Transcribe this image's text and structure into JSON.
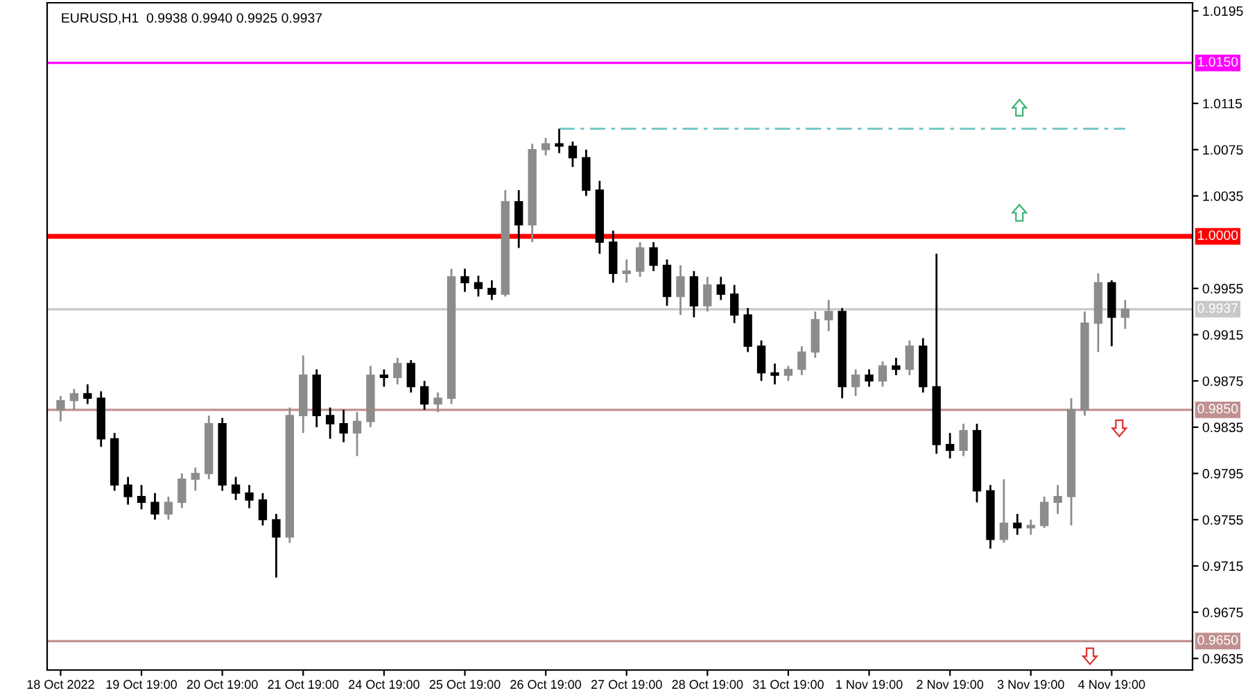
{
  "chart_data": {
    "type": "candlestick",
    "title": "EURUSD,H1  0.9938 0.9940 0.9925 0.9937",
    "categories": [
      "18 Oct 2022",
      null,
      null,
      null,
      null,
      null,
      "19 Oct 19:00",
      null,
      null,
      null,
      null,
      null,
      "20 Oct 19:00",
      null,
      null,
      null,
      null,
      null,
      "21 Oct 19:00",
      null,
      null,
      null,
      null,
      null,
      "24 Oct 19:00",
      null,
      null,
      null,
      null,
      null,
      "25 Oct 19:00",
      null,
      null,
      null,
      null,
      null,
      "26 Oct 19:00",
      null,
      null,
      null,
      null,
      null,
      "27 Oct 19:00",
      null,
      null,
      null,
      null,
      null,
      "28 Oct 19:00",
      null,
      null,
      null,
      null,
      null,
      "31 Oct 19:00",
      null,
      null,
      null,
      null,
      null,
      "1 Nov 19:00",
      null,
      null,
      null,
      null,
      null,
      "2 Nov 19:00",
      null,
      null,
      null,
      null,
      null,
      "3 Nov 19:00",
      null,
      null,
      null,
      null,
      null,
      "4 Nov 19:00",
      null
    ],
    "ohlc": [
      [
        0.985,
        0.9862,
        0.984,
        0.9858
      ],
      [
        0.9858,
        0.9868,
        0.985,
        0.9864
      ],
      [
        0.9864,
        0.9872,
        0.9855,
        0.986
      ],
      [
        0.986,
        0.9866,
        0.9818,
        0.9825
      ],
      [
        0.9825,
        0.983,
        0.978,
        0.9785
      ],
      [
        0.9785,
        0.9792,
        0.9768,
        0.9775
      ],
      [
        0.9775,
        0.9785,
        0.9764,
        0.977
      ],
      [
        0.977,
        0.9778,
        0.9755,
        0.976
      ],
      [
        0.976,
        0.9775,
        0.9755,
        0.977
      ],
      [
        0.977,
        0.9795,
        0.9765,
        0.979
      ],
      [
        0.979,
        0.98,
        0.978,
        0.9795
      ],
      [
        0.9795,
        0.9845,
        0.979,
        0.9838
      ],
      [
        0.9838,
        0.9843,
        0.978,
        0.9785
      ],
      [
        0.9785,
        0.9792,
        0.9772,
        0.9778
      ],
      [
        0.9778,
        0.9785,
        0.9765,
        0.9772
      ],
      [
        0.9772,
        0.9778,
        0.975,
        0.9755
      ],
      [
        0.9755,
        0.976,
        0.9705,
        0.974
      ],
      [
        0.974,
        0.9852,
        0.9735,
        0.9845
      ],
      [
        0.9845,
        0.9897,
        0.983,
        0.988
      ],
      [
        0.988,
        0.9885,
        0.9835,
        0.9845
      ],
      [
        0.9845,
        0.9852,
        0.9825,
        0.9838
      ],
      [
        0.9838,
        0.985,
        0.9822,
        0.983
      ],
      [
        0.983,
        0.9848,
        0.981,
        0.984
      ],
      [
        0.984,
        0.9888,
        0.9835,
        0.988
      ],
      [
        0.988,
        0.9885,
        0.987,
        0.9878
      ],
      [
        0.9878,
        0.9895,
        0.9872,
        0.989
      ],
      [
        0.989,
        0.9893,
        0.9865,
        0.987
      ],
      [
        0.987,
        0.9875,
        0.985,
        0.9855
      ],
      [
        0.9855,
        0.9865,
        0.9848,
        0.986
      ],
      [
        0.986,
        0.9972,
        0.9855,
        0.9965
      ],
      [
        0.9965,
        0.9972,
        0.9952,
        0.996
      ],
      [
        0.996,
        0.9966,
        0.9948,
        0.9955
      ],
      [
        0.9955,
        0.9962,
        0.9945,
        0.995
      ],
      [
        0.995,
        1.004,
        0.9948,
        1.003
      ],
      [
        1.003,
        1.004,
        0.999,
        1.001
      ],
      [
        1.001,
        1.008,
        0.9995,
        1.0075
      ],
      [
        1.0075,
        1.0085,
        1.007,
        1.008
      ],
      [
        1.008,
        1.0093,
        1.0072,
        1.0078
      ],
      [
        1.0078,
        1.0082,
        1.006,
        1.0068
      ],
      [
        1.0068,
        1.0075,
        1.0035,
        1.004
      ],
      [
        1.004,
        1.0048,
        0.9985,
        0.9995
      ],
      [
        0.9995,
        1.0005,
        0.996,
        0.9968
      ],
      [
        0.9968,
        0.998,
        0.996,
        0.997
      ],
      [
        0.997,
        0.9995,
        0.9965,
        0.999
      ],
      [
        0.999,
        0.9995,
        0.997,
        0.9975
      ],
      [
        0.9975,
        0.998,
        0.994,
        0.9948
      ],
      [
        0.9948,
        0.9975,
        0.9932,
        0.9965
      ],
      [
        0.9965,
        0.997,
        0.993,
        0.994
      ],
      [
        0.994,
        0.9965,
        0.9935,
        0.9958
      ],
      [
        0.9958,
        0.9965,
        0.9945,
        0.995
      ],
      [
        0.995,
        0.9958,
        0.9925,
        0.9932
      ],
      [
        0.9932,
        0.9938,
        0.99,
        0.9905
      ],
      [
        0.9905,
        0.991,
        0.9875,
        0.9882
      ],
      [
        0.9882,
        0.989,
        0.9872,
        0.988
      ],
      [
        0.988,
        0.9888,
        0.9875,
        0.9885
      ],
      [
        0.9885,
        0.9905,
        0.988,
        0.99
      ],
      [
        0.99,
        0.9935,
        0.9895,
        0.9928
      ],
      [
        0.9928,
        0.9945,
        0.9918,
        0.9935
      ],
      [
        0.9935,
        0.9938,
        0.986,
        0.987
      ],
      [
        0.987,
        0.9885,
        0.9862,
        0.988
      ],
      [
        0.988,
        0.9885,
        0.987,
        0.9875
      ],
      [
        0.9875,
        0.9892,
        0.987,
        0.9888
      ],
      [
        0.9888,
        0.9895,
        0.988,
        0.9885
      ],
      [
        0.9885,
        0.991,
        0.988,
        0.9905
      ],
      [
        0.9905,
        0.9912,
        0.9865,
        0.987
      ],
      [
        0.987,
        0.9985,
        0.9812,
        0.982
      ],
      [
        0.982,
        0.983,
        0.9808,
        0.9815
      ],
      [
        0.9815,
        0.9838,
        0.981,
        0.9832
      ],
      [
        0.9832,
        0.9838,
        0.977,
        0.978
      ],
      [
        0.978,
        0.9785,
        0.973,
        0.9738
      ],
      [
        0.9738,
        0.979,
        0.9735,
        0.9752
      ],
      [
        0.9752,
        0.976,
        0.9742,
        0.9748
      ],
      [
        0.9748,
        0.9755,
        0.9742,
        0.975
      ],
      [
        0.975,
        0.9775,
        0.9748,
        0.977
      ],
      [
        0.977,
        0.9785,
        0.976,
        0.9775
      ],
      [
        0.9775,
        0.986,
        0.975,
        0.985
      ],
      [
        0.985,
        0.9935,
        0.9845,
        0.9925
      ],
      [
        0.9925,
        0.9968,
        0.99,
        0.996
      ],
      [
        0.996,
        0.9962,
        0.9905,
        0.993
      ],
      [
        0.993,
        0.9945,
        0.992,
        0.9937
      ]
    ],
    "colors": [
      "#8c8c8c",
      "#8c8c8c",
      "#000000",
      "#000000",
      "#000000",
      "#000000",
      "#000000",
      "#000000",
      "#8c8c8c",
      "#8c8c8c",
      "#8c8c8c",
      "#8c8c8c",
      "#000000",
      "#000000",
      "#000000",
      "#000000",
      "#000000",
      "#8c8c8c",
      "#8c8c8c",
      "#000000",
      "#000000",
      "#000000",
      "#8c8c8c",
      "#8c8c8c",
      "#000000",
      "#8c8c8c",
      "#000000",
      "#000000",
      "#8c8c8c",
      "#8c8c8c",
      "#000000",
      "#000000",
      "#000000",
      "#8c8c8c",
      "#000000",
      "#8c8c8c",
      "#8c8c8c",
      "#000000",
      "#000000",
      "#000000",
      "#000000",
      "#000000",
      "#8c8c8c",
      "#8c8c8c",
      "#000000",
      "#000000",
      "#8c8c8c",
      "#000000",
      "#8c8c8c",
      "#000000",
      "#000000",
      "#000000",
      "#000000",
      "#000000",
      "#8c8c8c",
      "#8c8c8c",
      "#8c8c8c",
      "#8c8c8c",
      "#000000",
      "#8c8c8c",
      "#000000",
      "#8c8c8c",
      "#000000",
      "#8c8c8c",
      "#000000",
      "#000000",
      "#000000",
      "#8c8c8c",
      "#000000",
      "#000000",
      "#8c8c8c",
      "#000000",
      "#8c8c8c",
      "#8c8c8c",
      "#8c8c8c",
      "#8c8c8c",
      "#8c8c8c",
      "#8c8c8c",
      "#000000",
      "#8c8c8c"
    ],
    "series": [
      {
        "type": "line",
        "color": "#6fc4c4",
        "line_style": "dashed",
        "values": [
          null,
          null,
          null,
          null,
          null,
          null,
          null,
          null,
          null,
          null,
          null,
          null,
          null,
          null,
          null,
          null,
          null,
          null,
          null,
          null,
          null,
          null,
          null,
          null,
          null,
          null,
          null,
          null,
          null,
          null,
          null,
          null,
          null,
          null,
          null,
          null,
          null,
          1.0093,
          1.0093,
          1.0093,
          1.0093,
          1.0093,
          1.0093,
          1.0093,
          1.0093,
          1.0093,
          1.0093,
          1.0093,
          1.0093,
          1.0093,
          1.0093,
          1.0093,
          1.0093,
          1.0093,
          1.0093,
          1.0093,
          1.0093,
          1.0093,
          1.0093,
          1.0093,
          1.0093,
          1.0093,
          1.0093,
          1.0093,
          1.0093,
          1.0093,
          1.0093,
          1.0093,
          1.0093,
          1.0093,
          1.0093,
          1.0093,
          1.0093,
          1.0093,
          1.0093,
          1.0093,
          1.0093,
          1.0093,
          1.0093,
          1.0093
        ]
      }
    ],
    "ref_lines": [
      {
        "axis": "y",
        "value": 1.015,
        "label": "1.0150",
        "color": "#ff00ff"
      },
      {
        "axis": "y",
        "value": 1.0,
        "label": "1.0000",
        "color": "#ff0000"
      },
      {
        "axis": "y",
        "value": 0.9937,
        "label": "0.9937",
        "color": "#c8c8c8"
      },
      {
        "axis": "y",
        "value": 0.985,
        "label": "0.9850",
        "color": "#c09090"
      },
      {
        "axis": "y",
        "value": 0.965,
        "label": "0.9650",
        "color": "#c09090"
      }
    ],
    "ylim": [
      0.9625,
      1.0202
    ],
    "yticks": [
      0.9635,
      0.9675,
      0.9715,
      0.9755,
      0.9795,
      0.9835,
      0.9875,
      0.9915,
      0.9955,
      1.0035,
      1.0075,
      1.0115,
      1.0195
    ]
  }
}
